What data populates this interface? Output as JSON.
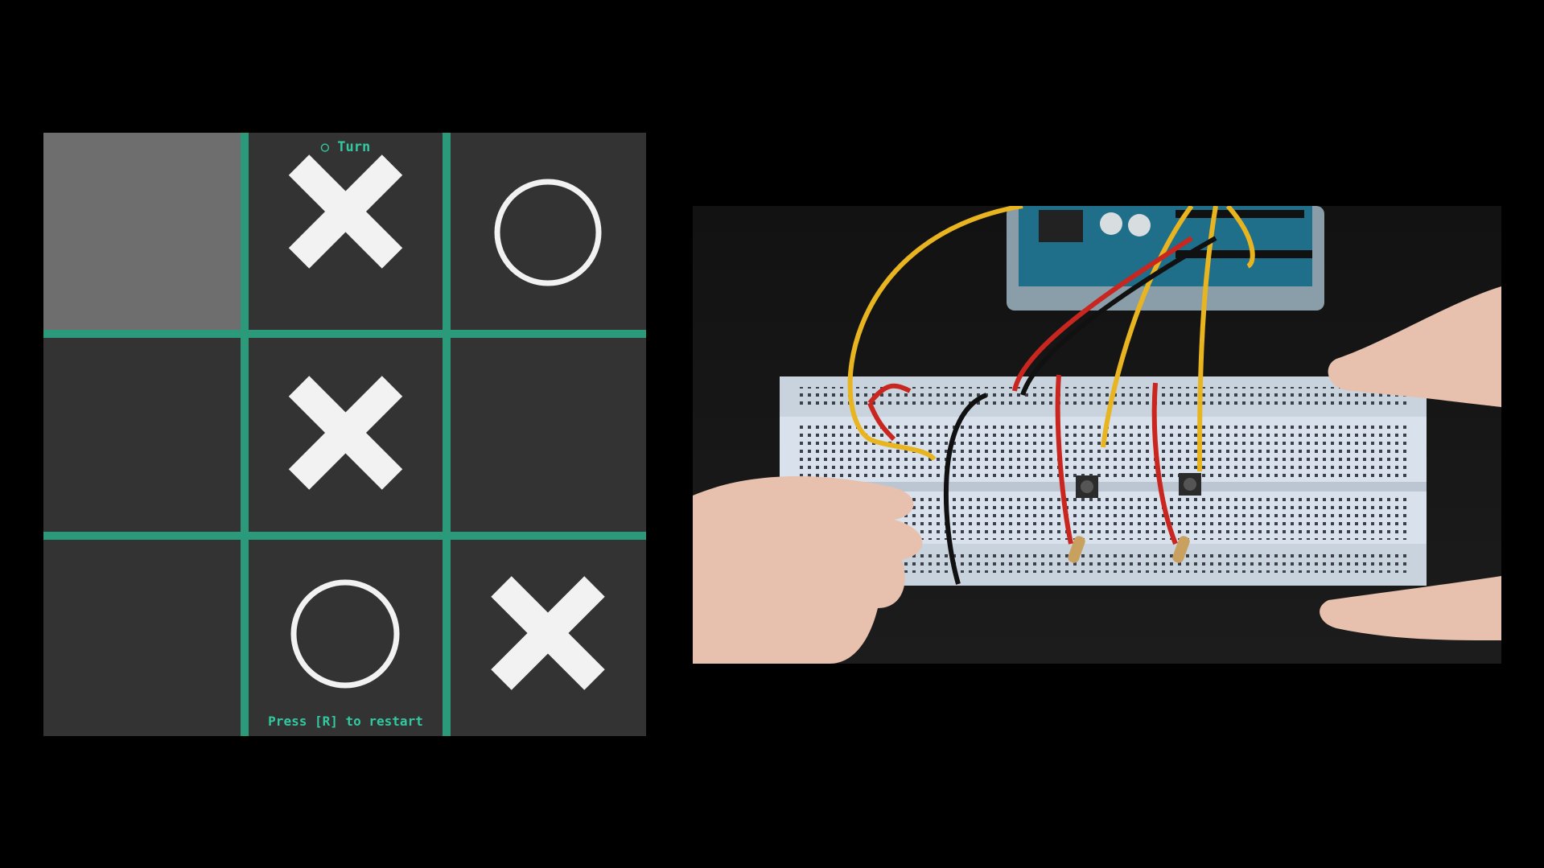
{
  "game": {
    "turn_text": "○ Turn",
    "restart_text": "Press [R] to restart",
    "colors": {
      "grid_line": "#2a9a7a",
      "cell_bg": "#333333",
      "selected_cell_bg": "#6e6e6e",
      "accent_text": "#33c9a0",
      "mark": "#f2f2f2"
    },
    "selected_cell": [
      0,
      0
    ],
    "cells": [
      [
        "",
        "X",
        "O"
      ],
      [
        "",
        "X",
        ""
      ],
      [
        "",
        "O",
        "X"
      ]
    ]
  },
  "video": {
    "description_icon": "breadboard-photo"
  }
}
